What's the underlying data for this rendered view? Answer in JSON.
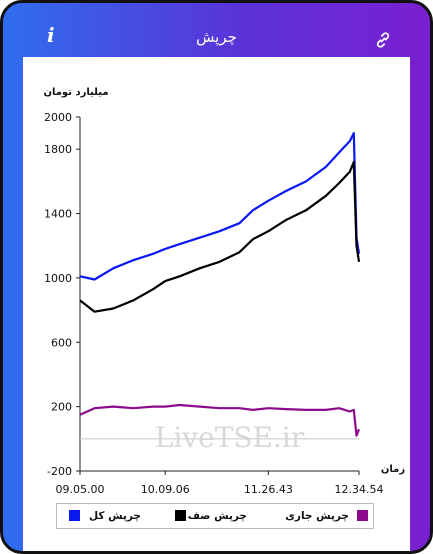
{
  "header": {
    "title": "چرپش",
    "info_label": "i",
    "info_icon": "info-icon",
    "link_icon": "link-icon"
  },
  "colors": {
    "frame_gradient_start": "#2f6df0",
    "frame_gradient_end": "#7a1fd0",
    "series_total": "#0b18f2",
    "series_queue": "#000000",
    "series_flow": "#8c0a8c"
  },
  "watermark": "LiveTSE.ir",
  "chart_data": {
    "type": "line",
    "ylabel": "میلیارد تومان",
    "xlabel": "زمان",
    "ylim": [
      -200,
      2000
    ],
    "yticks": [
      -200,
      200,
      600,
      1000,
      1400,
      1800,
      2000
    ],
    "xticks": [
      "09.05.00",
      "10.09.06",
      "11.26.43",
      "12.34.54"
    ],
    "x_range": [
      "09.05.00",
      "12.34.54"
    ],
    "grid": false,
    "legend_position": "bottom",
    "series": [
      {
        "name": "چرپش کل",
        "color": "#0b18f2",
        "x": [
          "09.05.00",
          "09.16.00",
          "09.30.00",
          "09.45.00",
          "10.00.00",
          "10.09.06",
          "10.20.00",
          "10.35.00",
          "10.50.00",
          "11.05.00",
          "11.15.00",
          "11.26.43",
          "11.40.00",
          "11.55.00",
          "12.10.00",
          "12.20.00",
          "12.28.00",
          "12.31.00",
          "12.33.00",
          "12.34.54"
        ],
        "values": [
          1010,
          990,
          1060,
          1110,
          1150,
          1180,
          1210,
          1250,
          1290,
          1340,
          1420,
          1480,
          1540,
          1600,
          1690,
          1780,
          1850,
          1900,
          1250,
          1150
        ]
      },
      {
        "name": "چرپش صف",
        "color": "#000000",
        "x": [
          "09.05.00",
          "09.16.00",
          "09.30.00",
          "09.45.00",
          "10.00.00",
          "10.09.06",
          "10.20.00",
          "10.35.00",
          "10.50.00",
          "11.05.00",
          "11.15.00",
          "11.26.43",
          "11.40.00",
          "11.55.00",
          "12.10.00",
          "12.20.00",
          "12.28.00",
          "12.31.00",
          "12.33.00",
          "12.34.54"
        ],
        "values": [
          860,
          790,
          810,
          860,
          930,
          980,
          1010,
          1060,
          1100,
          1160,
          1240,
          1290,
          1360,
          1420,
          1510,
          1590,
          1660,
          1720,
          1200,
          1100
        ]
      },
      {
        "name": "چرپش جاری",
        "color": "#8c0a8c",
        "x": [
          "09.05.00",
          "09.16.00",
          "09.30.00",
          "09.45.00",
          "10.00.00",
          "10.09.06",
          "10.20.00",
          "10.35.00",
          "10.50.00",
          "11.05.00",
          "11.15.00",
          "11.26.43",
          "11.40.00",
          "11.55.00",
          "12.10.00",
          "12.20.00",
          "12.28.00",
          "12.31.00",
          "12.33.00",
          "12.34.54"
        ],
        "values": [
          150,
          190,
          200,
          190,
          200,
          200,
          210,
          200,
          190,
          190,
          180,
          190,
          185,
          180,
          180,
          190,
          170,
          180,
          20,
          60
        ]
      }
    ]
  }
}
